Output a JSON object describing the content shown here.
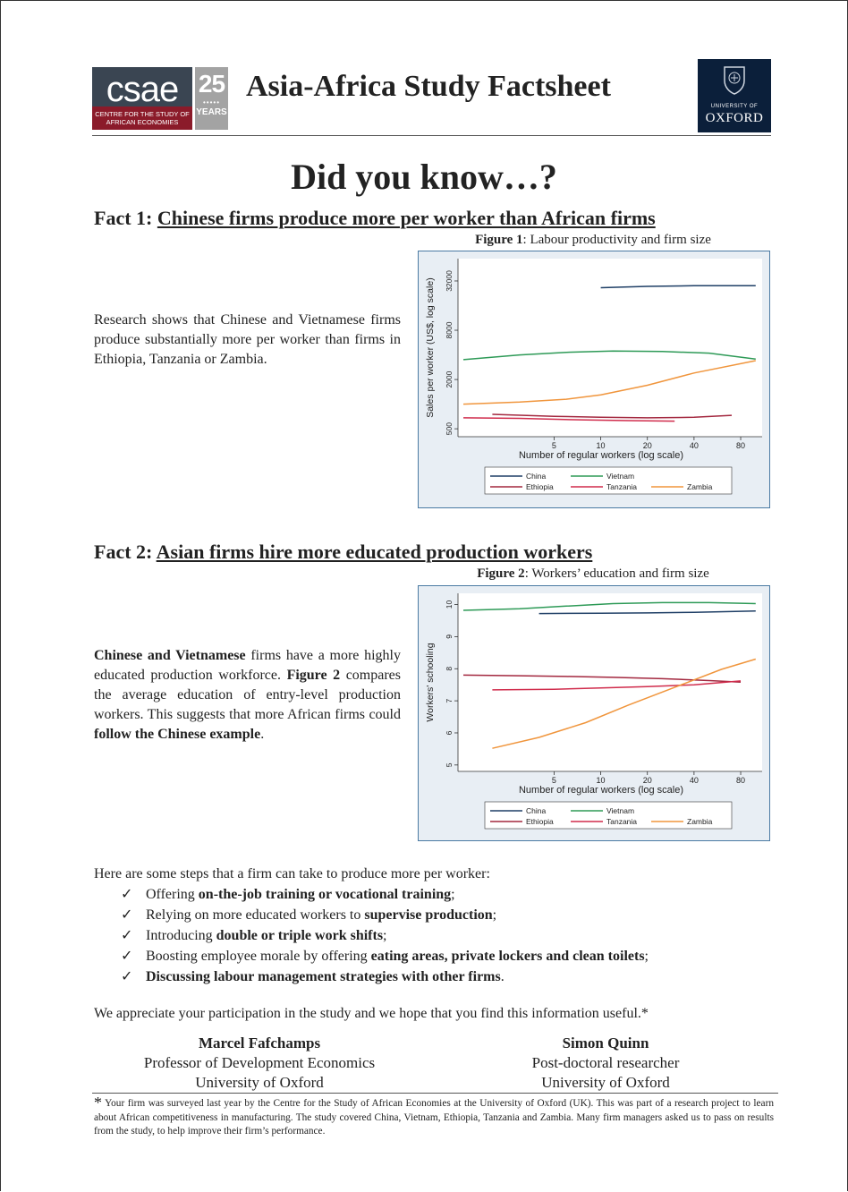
{
  "header": {
    "csae_logo_text": "csae",
    "csae_logo_subtext_1": "CENTRE FOR THE STUDY OF",
    "csae_logo_subtext_2": "AFRICAN ECONOMIES",
    "anniversary_number": "25",
    "anniversary_word": "YEARS",
    "title": "Asia-Africa Study Factsheet",
    "oxford_line_1": "UNIVERSITY OF",
    "oxford_line_2": "OXFORD"
  },
  "headline": "Did you know…?",
  "fact1": {
    "prefix": "Fact 1:",
    "title": "Chinese firms produce more per worker than African firms",
    "figure_label": "Figure 1",
    "figure_caption": ": Labour productivity and firm size",
    "text": "Research shows that Chinese and Vietnamese firms produce substantially more per worker than firms in Ethiopia, Tanzania or Zambia."
  },
  "fact2": {
    "prefix": "Fact 2:",
    "title": "Asian firms hire more educated production workers",
    "figure_label": "Figure 2",
    "figure_caption": ": Workers’ education and firm size",
    "text_bold_1": "Chinese and Vietnamese",
    "text_1": " firms have a more highly educated production workforce. ",
    "text_bold_2": "Figure 2",
    "text_2": " compares the average education of entry-level production workers.  This suggests that more African firms could ",
    "text_bold_3": "follow the Chinese example",
    "text_3": "."
  },
  "chart_data": [
    {
      "type": "line",
      "xlabel": "Number of regular workers (log scale)",
      "ylabel": "Sales per worker (US$, log scale)",
      "x_scale": "log",
      "y_scale": "log",
      "x_ticks": [
        5,
        10,
        20,
        40,
        80
      ],
      "y_ticks": [
        500,
        2000,
        8000,
        32000
      ],
      "xlim": [
        1.2,
        110
      ],
      "ylim": [
        400,
        60000
      ],
      "legend_position": "bottom",
      "series": [
        {
          "name": "China",
          "color": "#1f3f66",
          "x": [
            10,
            20,
            40,
            100
          ],
          "y": [
            26500,
            27500,
            28000,
            28000
          ]
        },
        {
          "name": "Vietnam",
          "color": "#2e9a57",
          "x": [
            1.3,
            3,
            6,
            12,
            25,
            50,
            100
          ],
          "y": [
            3500,
            4000,
            4300,
            4450,
            4400,
            4200,
            3550
          ]
        },
        {
          "name": "Ethiopia",
          "color": "#a3283f",
          "x": [
            2,
            5,
            10,
            20,
            40,
            70
          ],
          "y": [
            750,
            710,
            690,
            680,
            690,
            730
          ]
        },
        {
          "name": "Tanzania",
          "color": "#d02c4c",
          "x": [
            1.3,
            3,
            8,
            15,
            30
          ],
          "y": [
            680,
            670,
            640,
            630,
            620
          ]
        },
        {
          "name": "Zambia",
          "color": "#f0953c",
          "x": [
            1.3,
            3,
            6,
            10,
            20,
            40,
            100
          ],
          "y": [
            1000,
            1060,
            1150,
            1300,
            1700,
            2400,
            3400
          ]
        }
      ]
    },
    {
      "type": "line",
      "xlabel": "Number of regular workers (log scale)",
      "ylabel": "Workers' schooling",
      "x_scale": "log",
      "x_ticks": [
        5,
        10,
        20,
        40,
        80
      ],
      "y_ticks": [
        5,
        6,
        7,
        8,
        9,
        10
      ],
      "xlim": [
        1.2,
        110
      ],
      "ylim": [
        4.8,
        10.35
      ],
      "legend_position": "bottom",
      "series": [
        {
          "name": "China",
          "color": "#1f3f66",
          "x": [
            4,
            10,
            20,
            40,
            100
          ],
          "y": [
            9.72,
            9.73,
            9.74,
            9.76,
            9.8
          ]
        },
        {
          "name": "Vietnam",
          "color": "#2e9a57",
          "x": [
            1.3,
            3,
            6,
            12,
            25,
            50,
            100
          ],
          "y": [
            9.82,
            9.87,
            9.95,
            10.03,
            10.06,
            10.06,
            10.03
          ]
        },
        {
          "name": "Ethiopia",
          "color": "#a3283f",
          "x": [
            1.3,
            3,
            6,
            12,
            25,
            50,
            80
          ],
          "y": [
            7.8,
            7.78,
            7.76,
            7.73,
            7.69,
            7.63,
            7.58
          ]
        },
        {
          "name": "Tanzania",
          "color": "#d02c4c",
          "x": [
            2,
            5,
            10,
            20,
            40,
            80
          ],
          "y": [
            7.34,
            7.36,
            7.4,
            7.44,
            7.5,
            7.62
          ]
        },
        {
          "name": "Zambia",
          "color": "#f0953c",
          "x": [
            2,
            4,
            8,
            15,
            30,
            60,
            100
          ],
          "y": [
            5.52,
            5.86,
            6.32,
            6.86,
            7.42,
            7.98,
            8.3
          ]
        }
      ]
    }
  ],
  "steps": {
    "intro": "Here are some steps that a firm can take to produce more per worker:",
    "check": "✓",
    "items": [
      {
        "pre": "Offering ",
        "bold": "on-the-job training or vocational training",
        "post": ";"
      },
      {
        "pre": "Relying on more educated workers to ",
        "bold": "supervise production",
        "post": ";"
      },
      {
        "pre": "Introducing ",
        "bold": "double or triple work shifts",
        "post": ";"
      },
      {
        "pre": "Boosting employee morale by offering ",
        "bold": "eating areas, private lockers and clean toilets",
        "post": ";"
      },
      {
        "pre": "",
        "bold": "Discussing labour management strategies with other firms",
        "post": "."
      }
    ]
  },
  "closing": "We appreciate your participation in the study and we hope that you find this information useful.*",
  "signatures": [
    {
      "name": "Marcel Fafchamps",
      "role": "Professor of Development Economics",
      "org": "University of Oxford"
    },
    {
      "name": "Simon Quinn",
      "role": "Post-doctoral researcher",
      "org": "University of Oxford"
    }
  ],
  "footnote": {
    "star": "*",
    "text": " Your firm was surveyed last year by the Centre for the Study of African Economies at the University of Oxford (UK).  This was part of a research project to learn about African competitiveness in   manufacturing.  The study covered China, Vietnam, Ethiopia, Tanzania and Zambia.  Many firm managers asked us to pass on results from the study, to help improve their firm’s performance."
  }
}
